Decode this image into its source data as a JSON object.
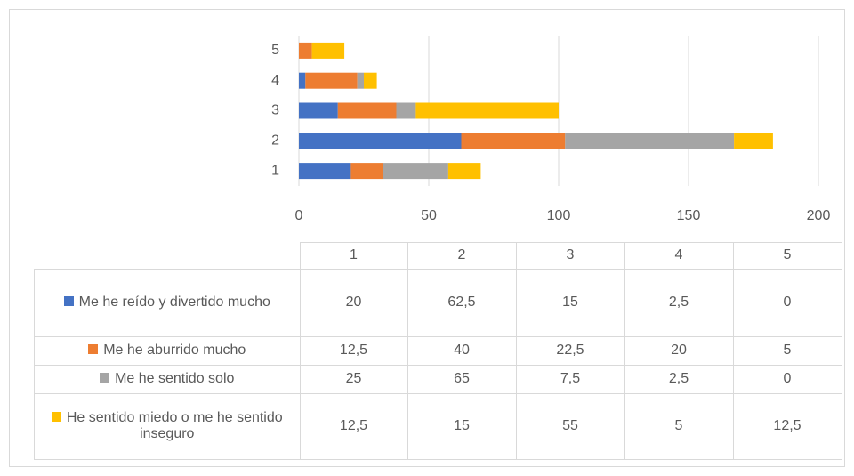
{
  "chart_data": {
    "type": "stacked-bar-horizontal",
    "categories": [
      "1",
      "2",
      "3",
      "4",
      "5"
    ],
    "series": [
      {
        "name": "Me he reído y divertido mucho",
        "color": "#4472c4",
        "values": [
          20,
          62.5,
          15,
          2.5,
          0
        ],
        "value_labels": [
          "20",
          "62,5",
          "15",
          "2,5",
          "0"
        ]
      },
      {
        "name": "Me he aburrido mucho",
        "color": "#ed7d31",
        "values": [
          12.5,
          40,
          22.5,
          20,
          5
        ],
        "value_labels": [
          "12,5",
          "40",
          "22,5",
          "20",
          "5"
        ]
      },
      {
        "name": "Me he sentido solo",
        "color": "#a5a5a5",
        "values": [
          25,
          65,
          7.5,
          2.5,
          0
        ],
        "value_labels": [
          "25",
          "65",
          "7,5",
          "2,5",
          "0"
        ]
      },
      {
        "name": "He sentido miedo o me he sentido inseguro",
        "color": "#ffc000",
        "values": [
          12.5,
          15,
          55,
          5,
          12.5
        ],
        "value_labels": [
          "12,5",
          "15",
          "55",
          "5",
          "12,5"
        ]
      }
    ],
    "xlim": [
      0,
      200
    ],
    "xticks": [
      0,
      50,
      100,
      150,
      200
    ],
    "grid": true,
    "data_table": true
  }
}
